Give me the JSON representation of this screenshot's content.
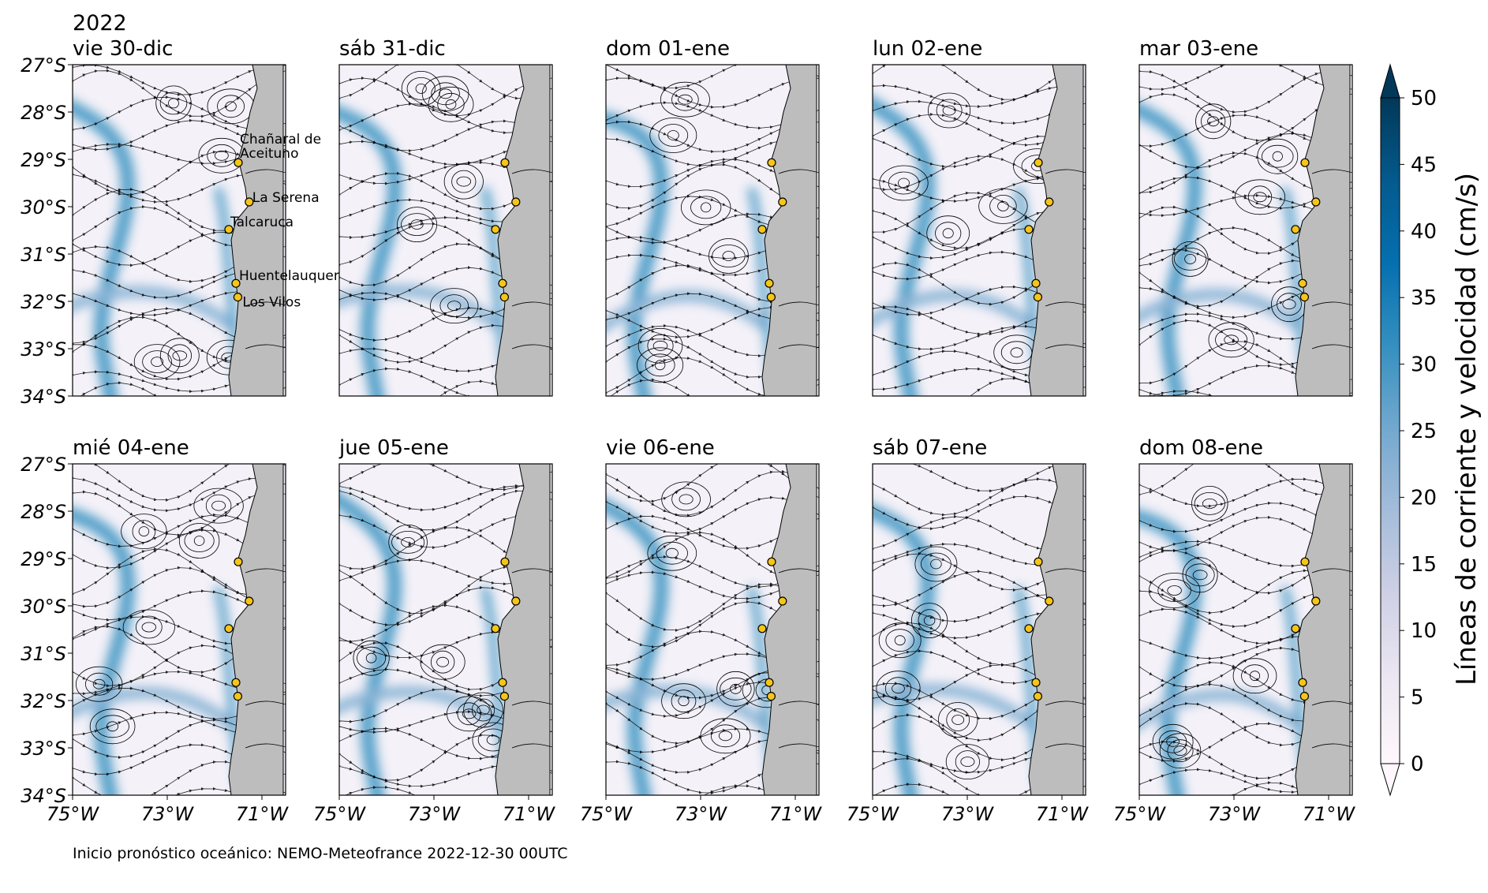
{
  "year_label": "2022",
  "footer_text": "Inicio pronóstico oceánico: NEMO-Meteofrance 2022-12-30 00UTC",
  "panels": [
    {
      "title": "vie 30-dic"
    },
    {
      "title": "sáb 31-dic"
    },
    {
      "title": "dom 01-ene"
    },
    {
      "title": "lun 02-ene"
    },
    {
      "title": "mar 03-ene"
    },
    {
      "title": "mié 04-ene"
    },
    {
      "title": "jue 05-ene"
    },
    {
      "title": "vie 06-ene"
    },
    {
      "title": "sáb 07-ene"
    },
    {
      "title": "dom 08-ene"
    }
  ],
  "axes": {
    "lat_ticks": [
      "27°S",
      "28°S",
      "29°S",
      "30°S",
      "31°S",
      "32°S",
      "33°S",
      "34°S"
    ],
    "lon_ticks": [
      "75°W",
      "73°W",
      "71°W"
    ],
    "lat_range": [
      -34,
      -27
    ],
    "lon_range": [
      -75,
      -70.5
    ]
  },
  "locations": [
    {
      "name": "Chañaral de Aceituno",
      "label_lines": [
        "Chañaral de",
        "Aceituno"
      ],
      "lat": -29.07,
      "lon": -71.5
    },
    {
      "name": "La Serena",
      "label_lines": [
        "La Serena"
      ],
      "lat": -29.9,
      "lon": -71.27
    },
    {
      "name": "Talcaruca",
      "label_lines": [
        "Talcaruca"
      ],
      "lat": -30.48,
      "lon": -71.7
    },
    {
      "name": "Huentelauquen",
      "label_lines": [
        "Huentelauquen"
      ],
      "lat": -31.62,
      "lon": -71.55
    },
    {
      "name": "Los Vilos",
      "label_lines": [
        "Los Vilos"
      ],
      "lat": -31.91,
      "lon": -71.51
    }
  ],
  "colorbar": {
    "label": "Líneas de corriente y velocidad (cm/s)",
    "ticks": [
      "0",
      "5",
      "10",
      "15",
      "20",
      "25",
      "30",
      "35",
      "40",
      "45",
      "50"
    ],
    "min": 0,
    "max": 50
  },
  "colors": {
    "land": "#bdbdbd",
    "marker_fill": "#f5c518",
    "cmap": [
      "#fff7fb",
      "#ece7f2",
      "#d0d1e6",
      "#a6bddb",
      "#74a9cf",
      "#3690c0",
      "#0570b0",
      "#045a8d",
      "#023858"
    ]
  }
}
